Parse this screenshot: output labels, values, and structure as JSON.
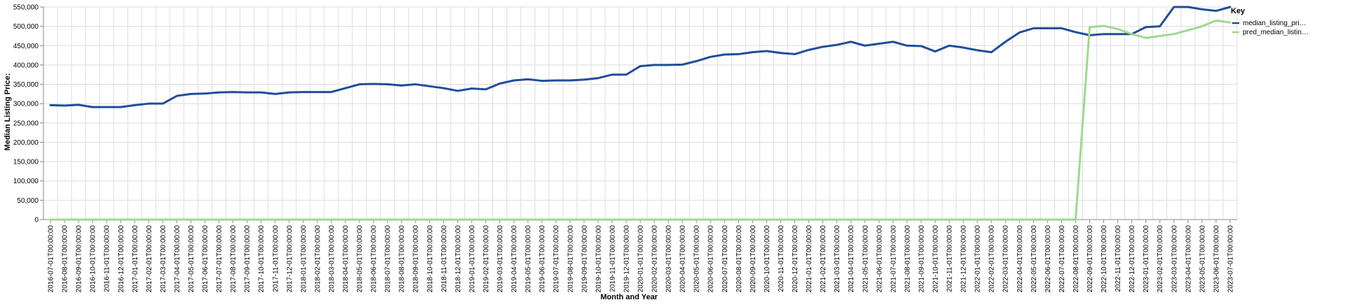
{
  "chart_data": {
    "type": "line",
    "xlabel": "Month and Year",
    "ylabel": "Median Listing Price:",
    "ylim": [
      0,
      550000
    ],
    "y_ticks": [
      "0",
      "50,000",
      "100,000",
      "150,000",
      "200,000",
      "250,000",
      "300,000",
      "350,000",
      "400,000",
      "450,000",
      "500,000",
      "550,000"
    ],
    "grid": true,
    "legend": {
      "title": "Key",
      "position": "top-right",
      "entries": [
        "median_listing_pri…",
        "pred_median_listin…"
      ]
    },
    "x": [
      "2016-07-01T00:00:00",
      "2016-08-01T00:00:00",
      "2016-09-01T00:00:00",
      "2016-10-01T00:00:00",
      "2016-11-01T00:00:00",
      "2016-12-01T00:00:00",
      "2017-01-01T00:00:00",
      "2017-02-01T00:00:00",
      "2017-03-01T00:00:00",
      "2017-04-01T00:00:00",
      "2017-05-01T00:00:00",
      "2017-06-01T00:00:00",
      "2017-07-01T00:00:00",
      "2017-08-01T00:00:00",
      "2017-09-01T00:00:00",
      "2017-10-01T00:00:00",
      "2017-11-01T00:00:00",
      "2017-12-01T00:00:00",
      "2018-01-01T00:00:00",
      "2018-02-01T00:00:00",
      "2018-03-01T00:00:00",
      "2018-04-01T00:00:00",
      "2018-05-01T00:00:00",
      "2018-06-01T00:00:00",
      "2018-07-01T00:00:00",
      "2018-08-01T00:00:00",
      "2018-09-01T00:00:00",
      "2018-10-01T00:00:00",
      "2018-11-01T00:00:00",
      "2018-12-01T00:00:00",
      "2019-01-01T00:00:00",
      "2019-02-01T00:00:00",
      "2019-03-01T00:00:00",
      "2019-04-01T00:00:00",
      "2019-05-01T00:00:00",
      "2019-06-01T00:00:00",
      "2019-07-01T00:00:00",
      "2019-08-01T00:00:00",
      "2019-09-01T00:00:00",
      "2019-10-01T00:00:00",
      "2019-11-01T00:00:00",
      "2019-12-01T00:00:00",
      "2020-01-01T00:00:00",
      "2020-02-01T00:00:00",
      "2020-03-01T00:00:00",
      "2020-04-01T00:00:00",
      "2020-05-01T00:00:00",
      "2020-06-01T00:00:00",
      "2020-07-01T00:00:00",
      "2020-08-01T00:00:00",
      "2020-09-01T00:00:00",
      "2020-10-01T00:00:00",
      "2020-11-01T00:00:00",
      "2020-12-01T00:00:00",
      "2021-01-01T00:00:00",
      "2021-02-01T00:00:00",
      "2021-03-01T00:00:00",
      "2021-04-01T00:00:00",
      "2021-05-01T00:00:00",
      "2021-06-01T00:00:00",
      "2021-07-01T00:00:00",
      "2021-08-01T00:00:00",
      "2021-09-01T00:00:00",
      "2021-10-01T00:00:00",
      "2021-11-01T00:00:00",
      "2021-12-01T00:00:00",
      "2022-01-01T00:00:00",
      "2022-02-01T00:00:00",
      "2022-03-01T00:00:00",
      "2022-04-01T00:00:00",
      "2022-05-01T00:00:00",
      "2022-06-01T00:00:00",
      "2022-07-01T00:00:00",
      "2022-08-01T00:00:00",
      "2022-09-01T00:00:00",
      "2022-10-01T00:00:00",
      "2022-11-01T00:00:00",
      "2022-12-01T00:00:00",
      "2023-01-01T00:00:00",
      "2023-02-01T00:00:00",
      "2023-03-01T00:00:00",
      "2023-04-01T00:00:00",
      "2023-05-01T00:00:00",
      "2023-06-01T00:00:00",
      "2023-07-01T00:00:00"
    ],
    "series": [
      {
        "name": "median_listing_pri…",
        "color": "#1f4e99",
        "values": [
          296000,
          295000,
          297000,
          291000,
          291000,
          291000,
          296000,
          300000,
          300000,
          320000,
          325000,
          326000,
          329000,
          330000,
          329000,
          329000,
          325000,
          329000,
          330000,
          330000,
          330000,
          340000,
          350000,
          351000,
          350000,
          347000,
          350000,
          345000,
          340000,
          333000,
          339000,
          337000,
          352000,
          360000,
          363000,
          359000,
          360000,
          360000,
          362000,
          366000,
          375000,
          375000,
          397000,
          400000,
          400000,
          401000,
          410000,
          421000,
          427000,
          428000,
          433000,
          436000,
          431000,
          428000,
          439000,
          447000,
          452000,
          460000,
          450000,
          455000,
          460000,
          450000,
          449000,
          435000,
          450000,
          445000,
          438000,
          433000,
          460000,
          484000,
          495000,
          495000,
          495000,
          485000,
          477000,
          480000,
          480000,
          480000,
          498000,
          500000,
          550000,
          550000,
          544000,
          540000,
          550000
        ]
      },
      {
        "name": "pred_median_listin…",
        "color": "#9fd88f",
        "values": [
          0,
          0,
          0,
          0,
          0,
          0,
          0,
          0,
          0,
          0,
          0,
          0,
          0,
          0,
          0,
          0,
          0,
          0,
          0,
          0,
          0,
          0,
          0,
          0,
          0,
          0,
          0,
          0,
          0,
          0,
          0,
          0,
          0,
          0,
          0,
          0,
          0,
          0,
          0,
          0,
          0,
          0,
          0,
          0,
          0,
          0,
          0,
          0,
          0,
          0,
          0,
          0,
          0,
          0,
          0,
          0,
          0,
          0,
          0,
          0,
          0,
          0,
          0,
          0,
          0,
          0,
          0,
          0,
          0,
          0,
          0,
          0,
          0,
          0,
          498000,
          501000,
          493000,
          480000,
          470000,
          475000,
          480000,
          490000,
          500000,
          515000,
          510000
        ]
      }
    ]
  }
}
